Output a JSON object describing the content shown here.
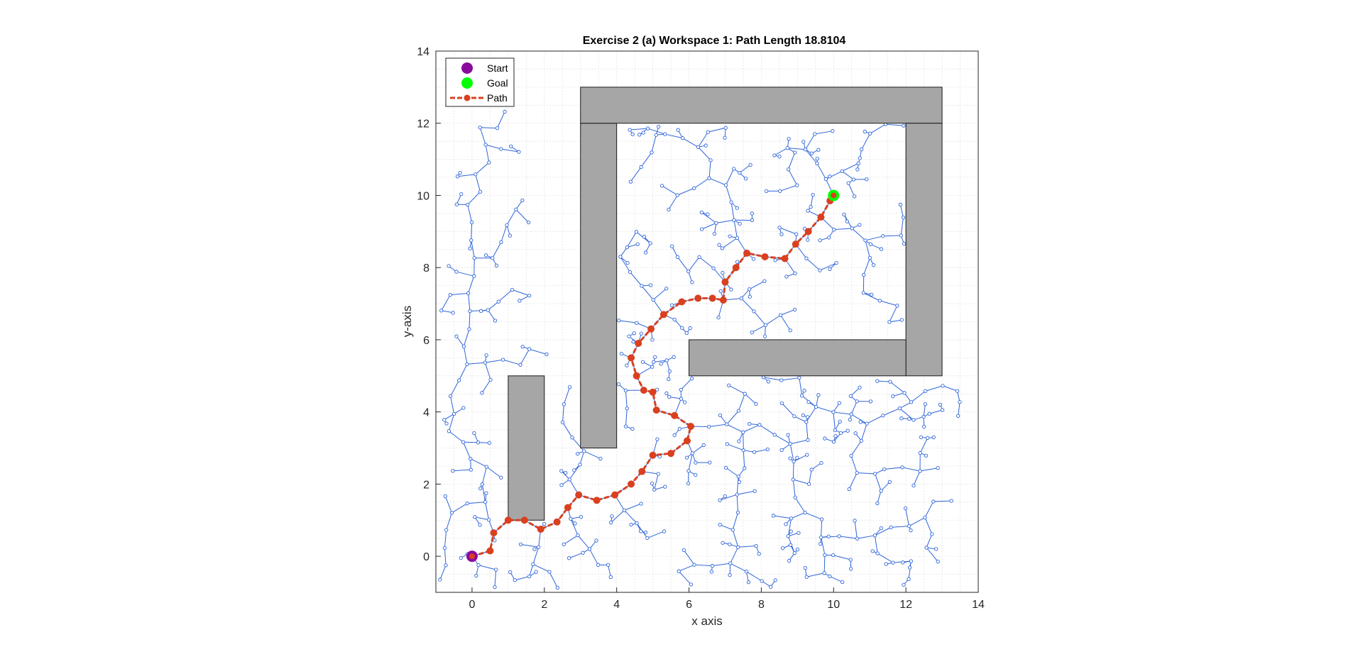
{
  "chart_data": {
    "type": "scatter",
    "title": "Exercise 2 (a) Workspace 1: Path Length 18.8104",
    "xlabel": "x axis",
    "ylabel": "y-axis",
    "xlim": [
      -1,
      14
    ],
    "ylim": [
      -1,
      14
    ],
    "x_ticks": [
      "0",
      "2",
      "4",
      "6",
      "8",
      "10",
      "12",
      "14"
    ],
    "y_ticks": [
      "0",
      "2",
      "4",
      "6",
      "8",
      "10",
      "12",
      "14"
    ],
    "grid": true,
    "legend_position": "top-left",
    "legend": [
      {
        "name": "Start",
        "color": "#8B0A9E",
        "marker": "circle"
      },
      {
        "name": "Goal",
        "color": "#00FF00",
        "marker": "circle"
      },
      {
        "name": "Path",
        "color": "#D9401F",
        "marker": "dash-dot-circle"
      }
    ],
    "obstacles": [
      {
        "x": 1,
        "y": 1,
        "w": 1,
        "h": 4
      },
      {
        "x": 3,
        "y": 3,
        "w": 1,
        "h": 9
      },
      {
        "x": 3,
        "y": 12,
        "w": 10,
        "h": 1
      },
      {
        "x": 12,
        "y": 5,
        "w": 1,
        "h": 7
      },
      {
        "x": 6,
        "y": 5,
        "w": 6,
        "h": 1
      }
    ],
    "start": [
      0,
      0
    ],
    "goal": [
      10,
      10
    ],
    "path": [
      [
        0,
        0
      ],
      [
        0.5,
        0.15
      ],
      [
        0.6,
        0.65
      ],
      [
        1.0,
        1.0
      ],
      [
        1.45,
        1.0
      ],
      [
        1.9,
        0.75
      ],
      [
        2.35,
        0.95
      ],
      [
        2.65,
        1.35
      ],
      [
        2.95,
        1.7
      ],
      [
        3.45,
        1.55
      ],
      [
        3.95,
        1.7
      ],
      [
        4.4,
        2.0
      ],
      [
        4.7,
        2.35
      ],
      [
        5.0,
        2.8
      ],
      [
        5.5,
        2.85
      ],
      [
        5.95,
        3.2
      ],
      [
        6.05,
        3.6
      ],
      [
        5.6,
        3.9
      ],
      [
        5.1,
        4.05
      ],
      [
        5.0,
        4.55
      ],
      [
        4.75,
        4.6
      ],
      [
        4.55,
        5.0
      ],
      [
        4.4,
        5.5
      ],
      [
        4.6,
        5.9
      ],
      [
        4.95,
        6.3
      ],
      [
        5.3,
        6.7
      ],
      [
        5.8,
        7.05
      ],
      [
        6.25,
        7.15
      ],
      [
        6.65,
        7.15
      ],
      [
        6.95,
        7.1
      ],
      [
        7.0,
        7.6
      ],
      [
        7.3,
        8.0
      ],
      [
        7.6,
        8.4
      ],
      [
        8.1,
        8.3
      ],
      [
        8.65,
        8.25
      ],
      [
        8.95,
        8.65
      ],
      [
        9.3,
        9.0
      ],
      [
        9.65,
        9.4
      ],
      [
        9.9,
        9.85
      ],
      [
        10,
        10
      ]
    ],
    "tree_color": "#2E64D9"
  }
}
